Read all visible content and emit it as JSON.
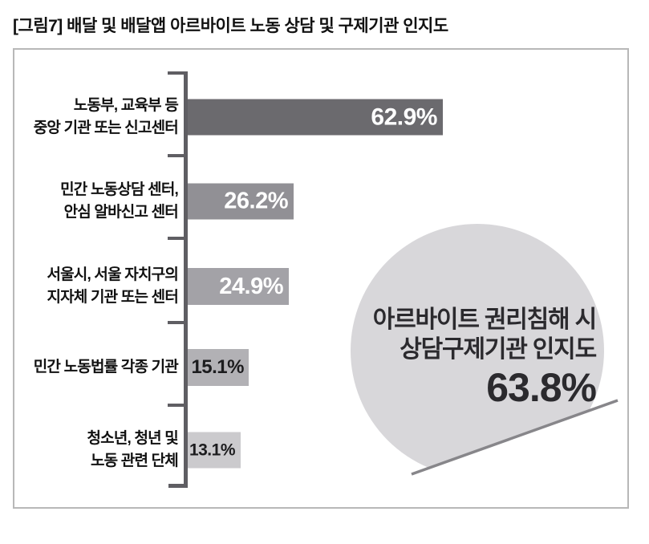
{
  "title": "[그림7] 배달 및 배달앱 아르바이트 노동 상담 및 구제기관 인지도",
  "colors": {
    "title_text": "#111111",
    "box_border": "#b8b8b8",
    "axis": "#5f5e63",
    "bar_1": "#6b6a6e",
    "bar_2": "#919095",
    "bar_3": "#a3a2a7",
    "bar_4": "#b2b1b5",
    "bar_5": "#cbcacd",
    "value_light": "#ffffff",
    "value_dark": "#1c1c1e",
    "circle_fill": "#d8d7da",
    "diagonal_line": "#87868a",
    "label_text": "#111111",
    "bubble_text": "#2b2a2e"
  },
  "chart_data": {
    "type": "bar",
    "orientation": "horizontal",
    "title": "배달 및 배달앱 아르바이트 노동 상담 및 구제기관 인지도",
    "categories": [
      "노동부, 교육부 등\n중앙 기관 또는 신고센터",
      "민간 노동상담 센터,\n안심 알바신고 센터",
      "서울시, 서울 자치구의\n지자체 기관 또는 센터",
      "민간 노동법률 각종 기관",
      "청소년, 청년 및\n노동 관련 단체"
    ],
    "values": [
      62.9,
      26.2,
      24.9,
      15.1,
      13.1
    ],
    "value_labels": [
      "62.9%",
      "26.2%",
      "24.9%",
      "15.1%",
      "13.1%"
    ],
    "xlim": [
      0,
      70
    ],
    "grid": false,
    "legend": false,
    "annotation": {
      "line1": "아르바이트 권리침해 시",
      "line2": "상담구제기관 인지도",
      "value": "63.8%"
    }
  }
}
